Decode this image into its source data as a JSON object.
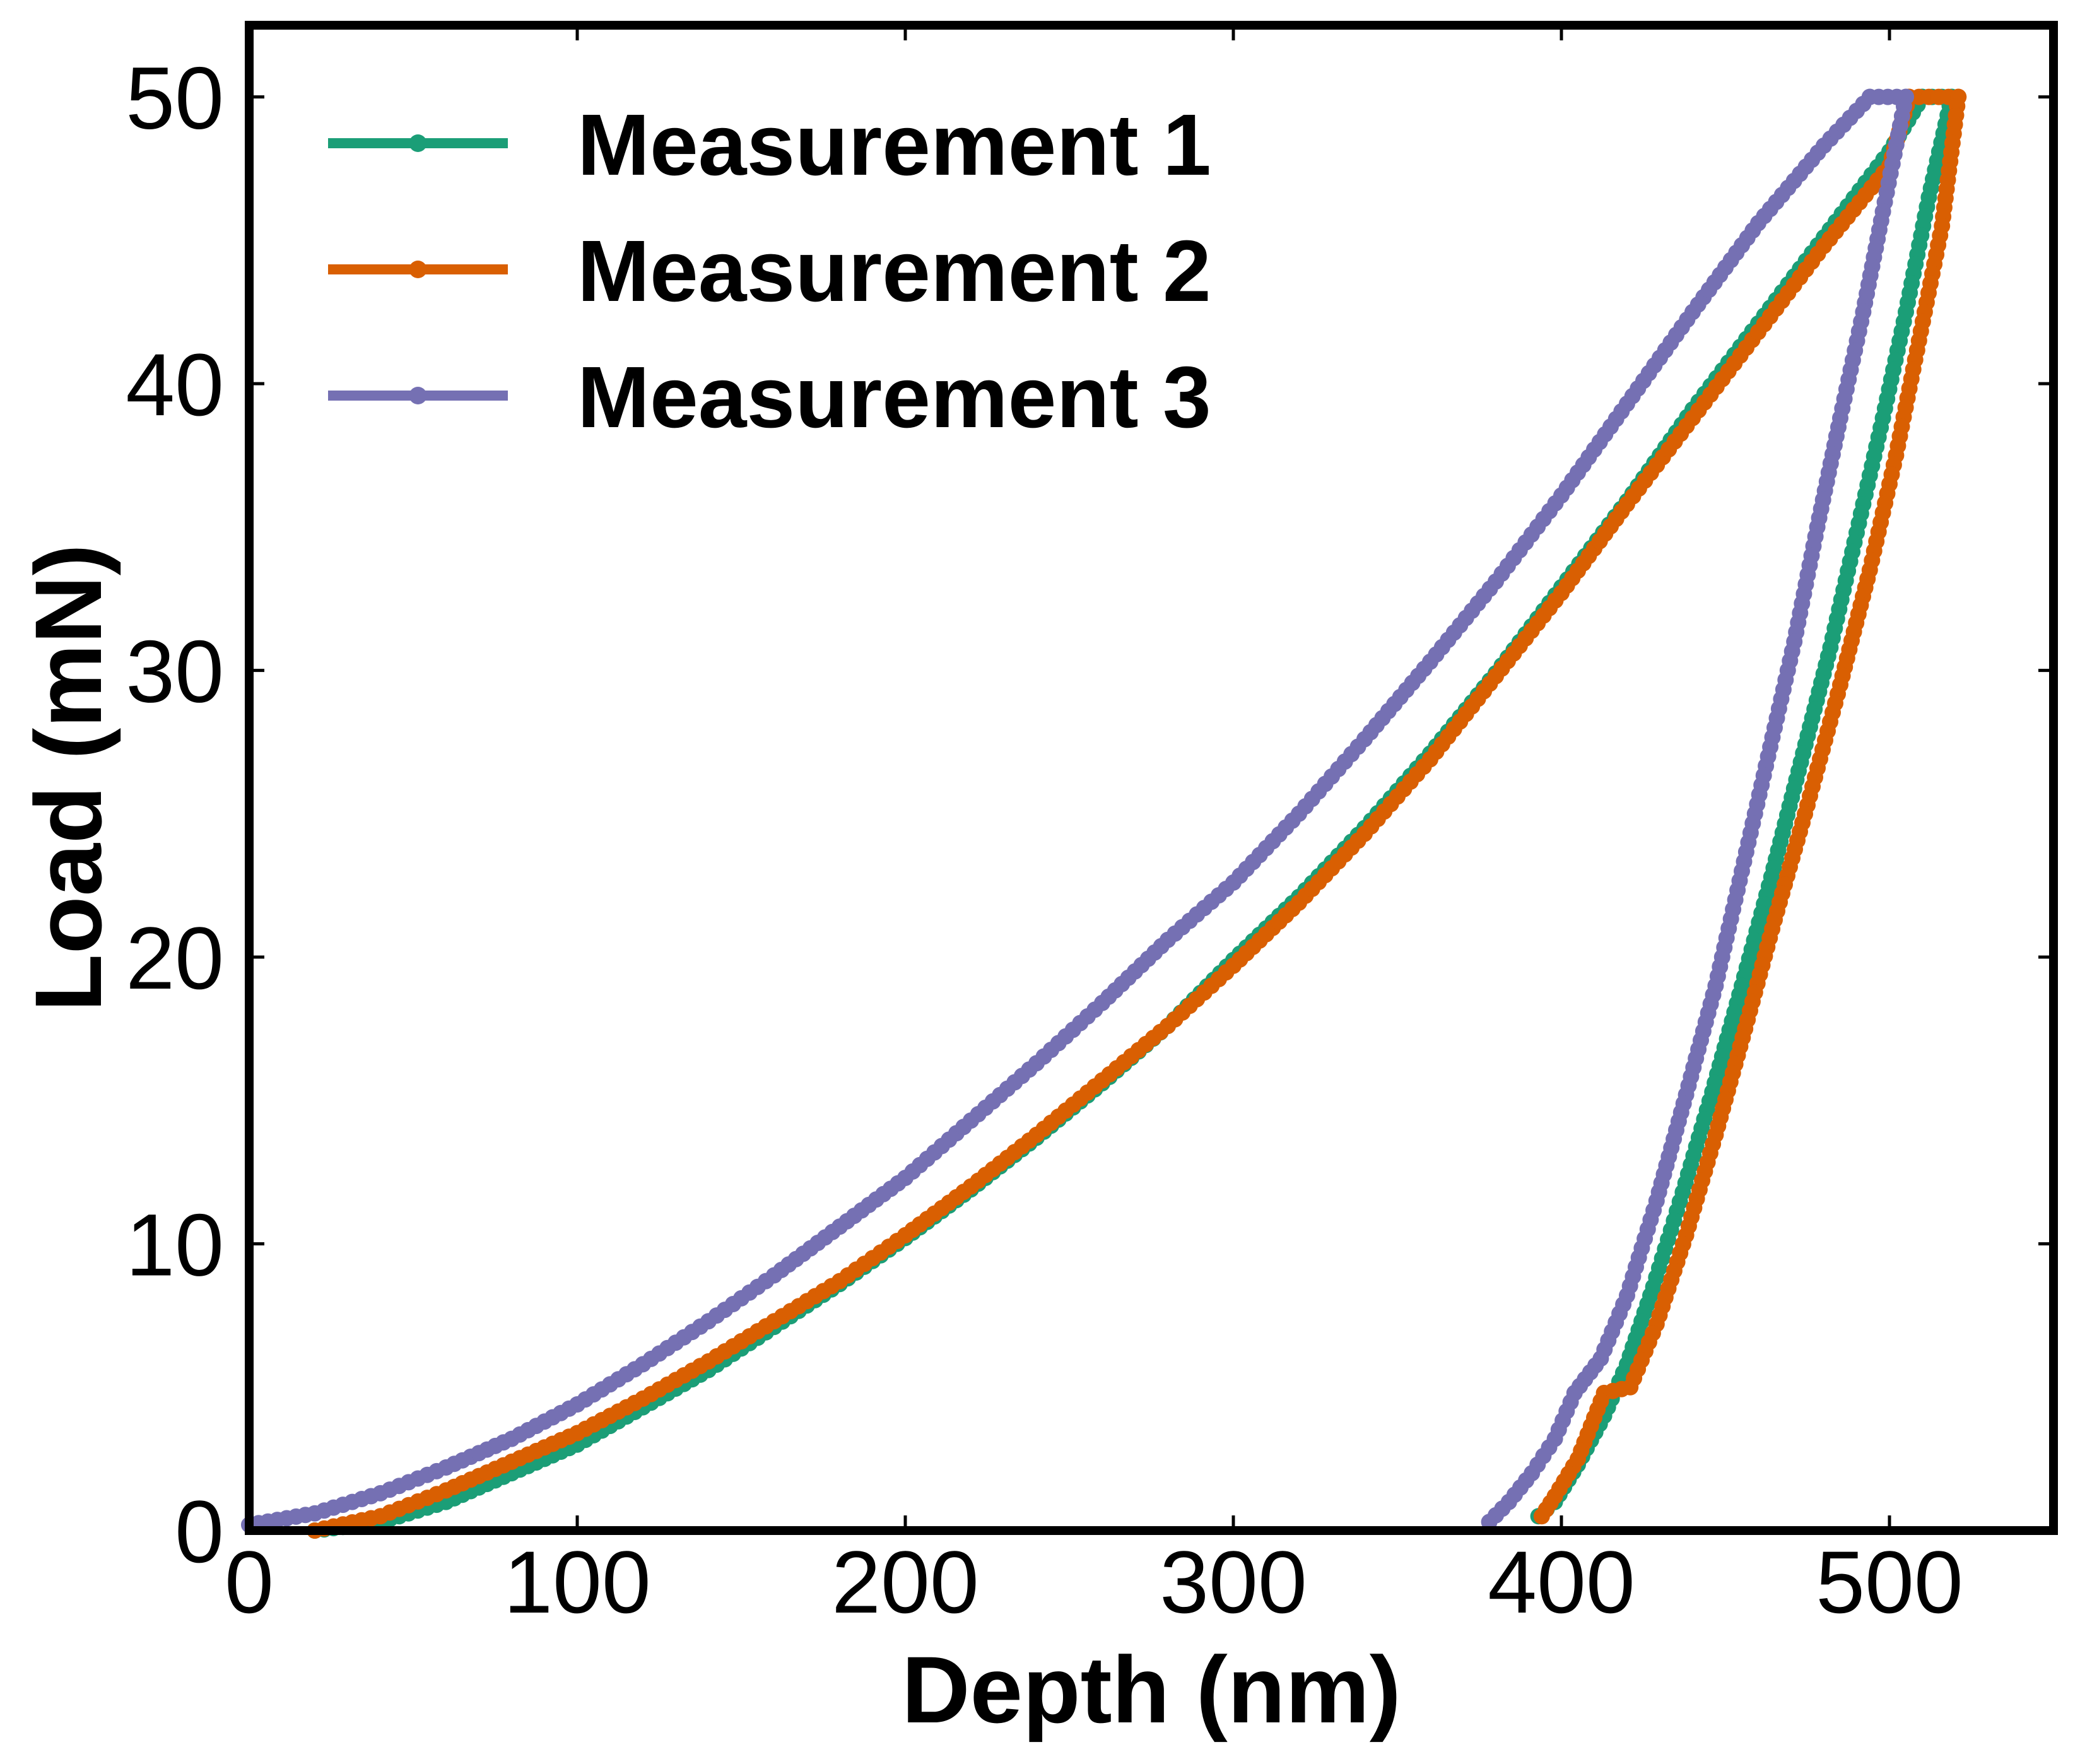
{
  "chart_data": {
    "type": "line",
    "title": "",
    "xlabel": "Depth (nm)",
    "ylabel": "Load (mN)",
    "xlim": [
      0,
      550
    ],
    "ylim": [
      0,
      52.5
    ],
    "xticks": [
      0,
      100,
      200,
      300,
      400,
      500
    ],
    "yticks": [
      0,
      10,
      20,
      30,
      40,
      50
    ],
    "xtick_labels": [
      "0",
      "100",
      "200",
      "300",
      "400",
      "500"
    ],
    "ytick_labels": [
      "0",
      "10",
      "20",
      "30",
      "40",
      "50"
    ],
    "grid": false,
    "legend_position": "top-left",
    "series": [
      {
        "name": "Measurement 1",
        "color": "#1b9e77",
        "loading": {
          "x": [
            20,
            40,
            60,
            80,
            100,
            120,
            140,
            160,
            180,
            200,
            220,
            240,
            260,
            280,
            300,
            320,
            340,
            360,
            380,
            400,
            420,
            440,
            460,
            480,
            500,
            510
          ],
          "y": [
            0,
            0.3,
            1.0,
            2.0,
            3.0,
            4.3,
            5.6,
            7.1,
            8.6,
            10.2,
            11.9,
            13.7,
            15.6,
            17.6,
            19.9,
            22.1,
            24.5,
            27.1,
            29.9,
            32.9,
            35.9,
            39.1,
            42.1,
            45.1,
            48.1,
            50
          ]
        },
        "hold": {
          "x": [
            510,
            519
          ],
          "y": [
            50,
            50
          ]
        },
        "unloading": {
          "x": [
            519,
            512,
            505,
            498,
            490,
            482,
            473,
            464,
            455,
            446,
            437,
            428,
            420,
            413,
            405,
            398,
            393
          ],
          "y": [
            50,
            46.5,
            42.5,
            38.8,
            34.8,
            30.8,
            26.8,
            22.8,
            19.0,
            15.3,
            11.8,
            8.5,
            5.8,
            4.0,
            2.3,
            1.0,
            0.5
          ]
        }
      },
      {
        "name": "Measurement 2",
        "color": "#d95f02",
        "loading": {
          "x": [
            20,
            40,
            60,
            80,
            100,
            120,
            140,
            160,
            180,
            200,
            220,
            240,
            260,
            280,
            300,
            320,
            340,
            360,
            380,
            400,
            420,
            440,
            460,
            480,
            500,
            506
          ],
          "y": [
            0,
            0.5,
            1.4,
            2.4,
            3.4,
            4.6,
            5.9,
            7.3,
            8.7,
            10.3,
            12.0,
            13.8,
            15.7,
            17.6,
            19.7,
            21.9,
            24.3,
            26.9,
            29.8,
            32.7,
            35.8,
            38.8,
            41.8,
            44.8,
            47.6,
            50
          ]
        },
        "hold": {
          "x": [
            506,
            521
          ],
          "y": [
            50,
            50
          ]
        },
        "unloading": {
          "x": [
            521,
            516,
            509,
            502,
            494,
            485,
            475,
            465,
            456,
            447,
            438,
            429,
            421,
            413,
            405,
            398,
            394
          ],
          "y": [
            50,
            45.5,
            41.5,
            37.5,
            33.5,
            29.5,
            25.3,
            21.3,
            17.5,
            13.8,
            10.3,
            7.2,
            5.0,
            4.8,
            2.5,
            1.2,
            0.5
          ]
        }
      },
      {
        "name": "Measurement 3",
        "color": "#7570b3",
        "loading": {
          "x": [
            0,
            20,
            40,
            60,
            80,
            100,
            120,
            140,
            160,
            180,
            200,
            220,
            240,
            260,
            280,
            300,
            320,
            340,
            360,
            380,
            400,
            420,
            440,
            460,
            480,
            494
          ],
          "y": [
            0.2,
            0.6,
            1.3,
            2.2,
            3.2,
            4.4,
            5.8,
            7.3,
            8.9,
            10.6,
            12.3,
            14.3,
            16.3,
            18.4,
            20.6,
            22.6,
            25.0,
            27.6,
            30.3,
            33.1,
            36.1,
            39.3,
            42.5,
            45.6,
            48.3,
            50
          ]
        },
        "hold": {
          "x": [
            494,
            505
          ],
          "y": [
            50,
            50
          ]
        },
        "unloading": {
          "x": [
            505,
            498,
            492,
            485,
            478,
            471,
            463,
            455,
            447,
            438,
            429,
            420,
            412,
            404,
            398,
            391,
            384,
            378
          ],
          "y": [
            50,
            46.0,
            42.5,
            38.8,
            35.0,
            31.0,
            27.0,
            23.0,
            19.0,
            15.2,
            11.5,
            8.2,
            6.0,
            4.8,
            3.2,
            2.0,
            1.0,
            0.3
          ]
        }
      }
    ]
  }
}
